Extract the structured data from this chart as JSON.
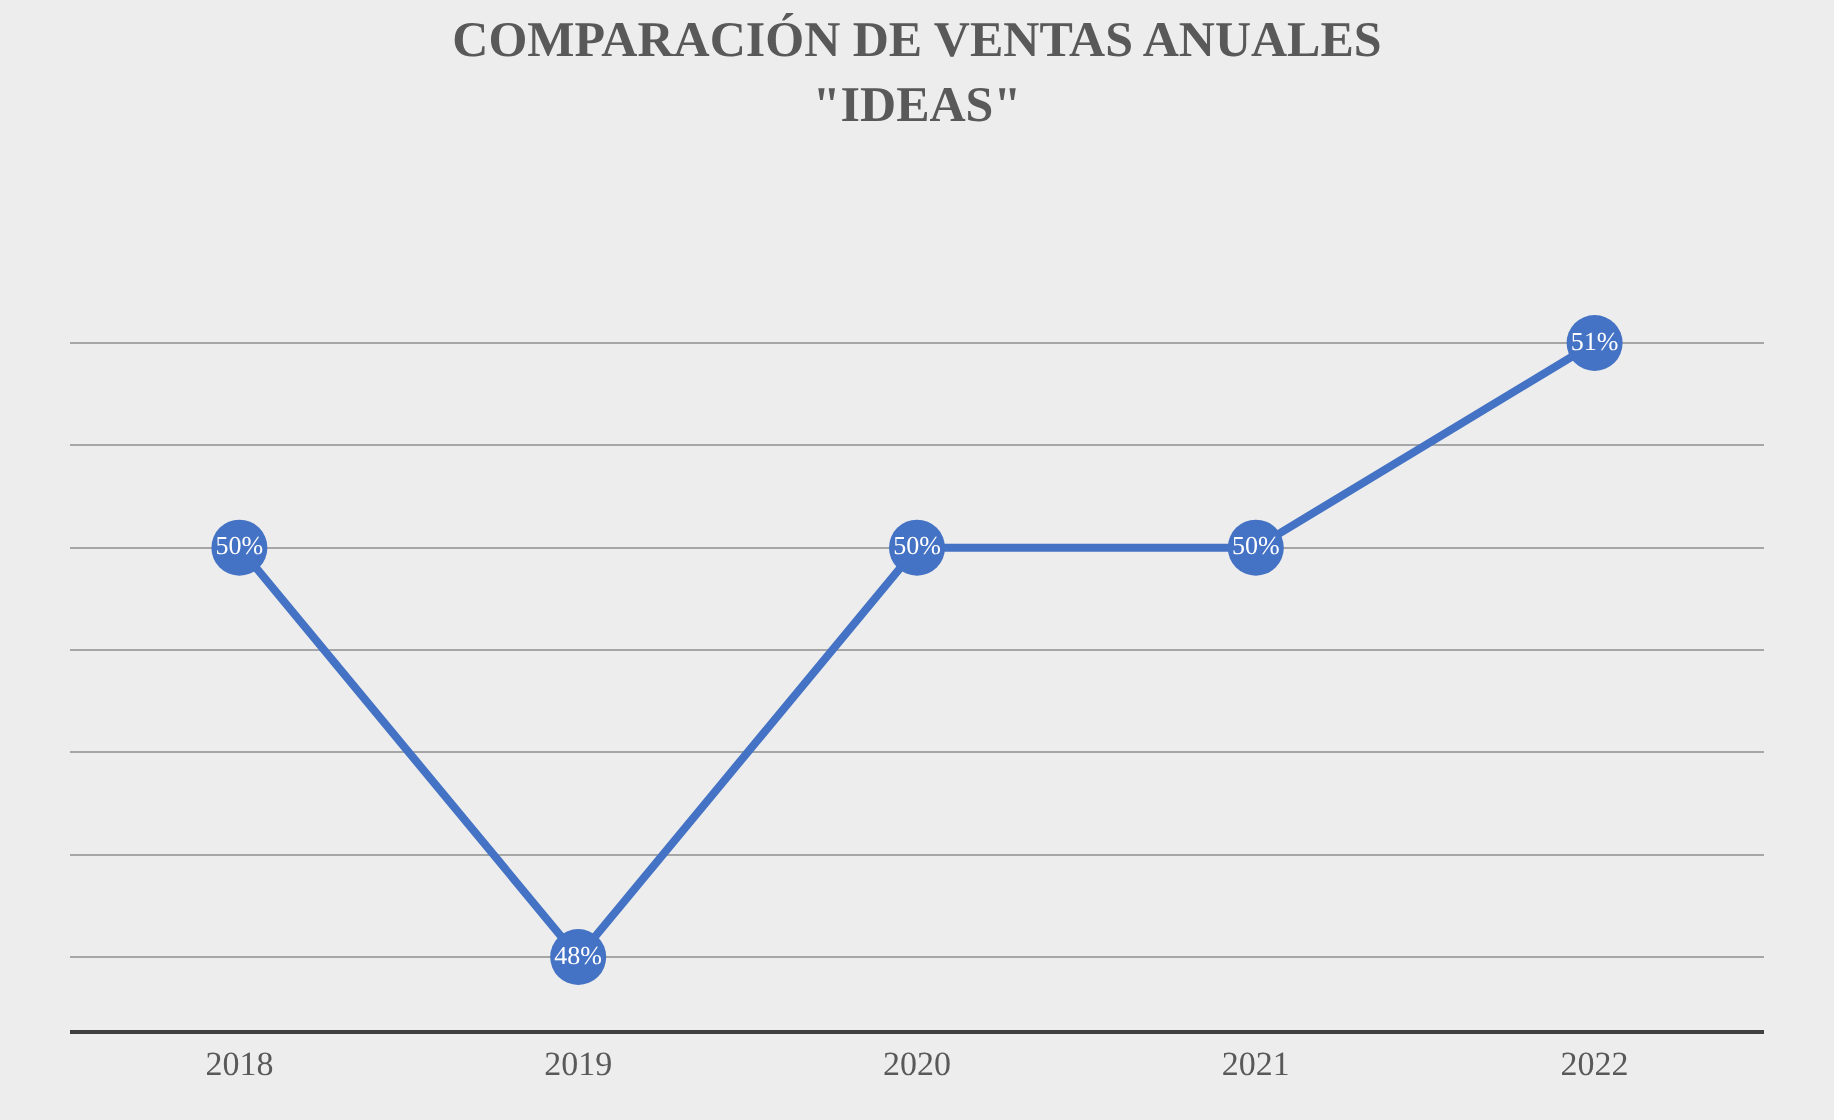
{
  "chart_data": {
    "type": "line",
    "title": "COMPARACIÓN DE VENTAS ANUALES\n\"IDEAS\"",
    "categories": [
      "2018",
      "2019",
      "2020",
      "2021",
      "2022"
    ],
    "series": [
      {
        "color": "#4472c4",
        "values": [
          50,
          48,
          50,
          50,
          51
        ],
        "value_labels": [
          "50%",
          "48%",
          "50%",
          "50%",
          "51%"
        ]
      }
    ],
    "grid": "y",
    "marker": "circle",
    "line_style": "solid",
    "legend": false
  }
}
